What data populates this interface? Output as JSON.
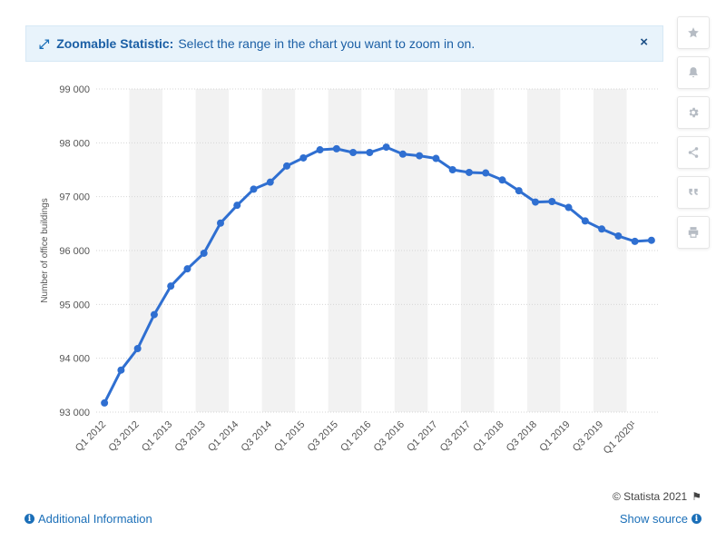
{
  "banner": {
    "title": "Zoomable Statistic:",
    "message": "Select the range in the chart you want to zoom in on.",
    "close_glyph": "×"
  },
  "toolbar": {
    "buttons": [
      "star-icon",
      "bell-icon",
      "gear-icon",
      "share-icon",
      "quote-icon",
      "print-icon"
    ]
  },
  "footer": {
    "credit": "© Statista 2021",
    "additional_info": "Additional Information",
    "show_source": "Show source"
  },
  "colors": {
    "line": "#2f6fd1",
    "band": "#f2f2f2",
    "grid": "#d6d6d6",
    "accent": "#1b6fb8"
  },
  "chart_data": {
    "type": "line",
    "ylabel": "Number of office buildings",
    "ylim": [
      93000,
      99000
    ],
    "yticks": [
      93000,
      94000,
      95000,
      96000,
      97000,
      98000,
      99000
    ],
    "ytick_labels": [
      "93 000",
      "94 000",
      "95 000",
      "96 000",
      "97 000",
      "98 000",
      "99 000"
    ],
    "categories": [
      "Q1 2012",
      "Q2 2012",
      "Q3 2012",
      "Q4 2012",
      "Q1 2013",
      "Q2 2013",
      "Q3 2013",
      "Q4 2013",
      "Q1 2014",
      "Q2 2014",
      "Q3 2014",
      "Q4 2014",
      "Q1 2015",
      "Q2 2015",
      "Q3 2015",
      "Q4 2015",
      "Q1 2016",
      "Q2 2016",
      "Q3 2016",
      "Q4 2016",
      "Q1 2017",
      "Q2 2017",
      "Q3 2017",
      "Q4 2017",
      "Q1 2018",
      "Q2 2018",
      "Q3 2018",
      "Q4 2018",
      "Q1 2019",
      "Q2 2019",
      "Q3 2019",
      "Q4 2019",
      "Q1 2020¹",
      "Q2 2020¹"
    ],
    "xtick_labels": [
      "Q1 2012",
      "Q3 2012",
      "Q1 2013",
      "Q3 2013",
      "Q1 2014",
      "Q3 2014",
      "Q1 2015",
      "Q3 2015",
      "Q1 2016",
      "Q3 2016",
      "Q1 2017",
      "Q3 2017",
      "Q1 2018",
      "Q3 2018",
      "Q1 2019",
      "Q3 2019",
      "Q1 2020¹"
    ],
    "series": [
      {
        "values": [
          93170,
          93780,
          94180,
          94810,
          95340,
          95660,
          95950,
          96510,
          96840,
          97140,
          97270,
          97570,
          97720,
          97870,
          97890,
          97820,
          97820,
          97920,
          97790,
          97760,
          97710,
          97500,
          97450,
          97440,
          97310,
          97110,
          96900,
          96910,
          96800,
          96550,
          96400,
          96270,
          96170,
          96190
        ]
      }
    ],
    "grid": true,
    "alternating_bands": true,
    "legend": "none"
  }
}
